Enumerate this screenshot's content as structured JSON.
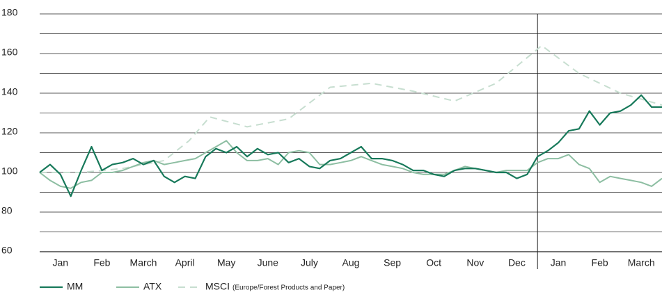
{
  "chart_data": {
    "type": "line",
    "xlim": [
      0,
      15
    ],
    "ylim": [
      60,
      180
    ],
    "yticks": [
      60,
      80,
      100,
      120,
      140,
      160,
      180
    ],
    "minor_grid_yticks": [
      70,
      90,
      110,
      130,
      150,
      170
    ],
    "grid": true,
    "divider_x": 12,
    "xticks": [
      {
        "value": 0.5,
        "label": "Jan"
      },
      {
        "value": 1.5,
        "label": "Feb"
      },
      {
        "value": 2.5,
        "label": "March"
      },
      {
        "value": 3.5,
        "label": "April"
      },
      {
        "value": 4.5,
        "label": "May"
      },
      {
        "value": 5.5,
        "label": "June"
      },
      {
        "value": 6.5,
        "label": "July"
      },
      {
        "value": 7.5,
        "label": "Aug"
      },
      {
        "value": 8.5,
        "label": "Sep"
      },
      {
        "value": 9.5,
        "label": "Oct"
      },
      {
        "value": 10.5,
        "label": "Nov"
      },
      {
        "value": 11.5,
        "label": "Dec"
      },
      {
        "value": 12.5,
        "label": "Jan"
      },
      {
        "value": 13.5,
        "label": "Feb"
      },
      {
        "value": 14.5,
        "label": "March"
      }
    ],
    "x": [
      0,
      0.25,
      0.5,
      0.75,
      1,
      1.25,
      1.5,
      1.75,
      2,
      2.25,
      2.5,
      2.75,
      3,
      3.25,
      3.5,
      3.75,
      4,
      4.25,
      4.5,
      4.75,
      5,
      5.25,
      5.5,
      5.75,
      6,
      6.25,
      6.5,
      6.75,
      7,
      7.25,
      7.5,
      7.75,
      8,
      8.25,
      8.5,
      8.75,
      9,
      9.25,
      9.5,
      9.75,
      10,
      10.25,
      10.5,
      10.75,
      11,
      11.25,
      11.5,
      11.75,
      12,
      12.25,
      12.5,
      12.75,
      13,
      13.25,
      13.5,
      13.75,
      14,
      14.25,
      14.5,
      14.75,
      15
    ],
    "legend_note": "(Europe/Forest Products and Paper)",
    "series": [
      {
        "name": "MM",
        "color": "#17795a",
        "width": 2.2,
        "values": [
          100,
          104,
          99,
          88,
          101,
          113,
          101,
          104,
          105,
          107,
          104,
          106,
          98,
          95,
          98,
          97,
          108,
          112,
          110,
          113,
          108,
          112,
          109,
          110,
          105,
          107,
          103,
          102,
          106,
          107,
          110,
          113,
          107,
          107,
          106,
          104,
          101,
          101,
          99,
          98,
          101,
          102,
          102,
          101,
          100,
          100,
          97,
          99,
          108,
          111,
          115,
          121,
          122,
          131,
          124,
          130,
          131,
          134,
          139,
          133,
          133
        ]
      },
      {
        "name": "ATX",
        "color": "#8dbea2",
        "width": 2,
        "values": [
          100,
          96,
          93,
          92,
          95,
          96,
          100,
          100,
          101,
          103,
          105,
          106,
          104,
          105,
          106,
          107,
          110,
          113,
          116,
          110,
          106,
          106,
          107,
          104,
          110,
          111,
          110,
          104,
          104,
          105,
          106,
          108,
          106,
          104,
          103,
          102,
          100,
          99,
          99,
          99,
          101,
          103,
          102,
          101,
          100,
          101,
          101,
          101,
          105,
          107,
          107,
          109,
          104,
          102,
          95,
          98,
          97,
          96,
          95,
          93,
          97
        ]
      },
      {
        "name": "MSCI",
        "color": "#c7ded0",
        "width": 2,
        "dashed": true,
        "x": [
          0,
          1,
          2,
          3,
          3.6,
          4.1,
          5,
          6,
          7,
          8,
          9,
          10,
          11,
          12.1,
          13,
          14,
          15
        ],
        "values": [
          100,
          100,
          102,
          106,
          116,
          128,
          123,
          127,
          143,
          145,
          141,
          136,
          145,
          164,
          150,
          140,
          134
        ]
      }
    ]
  }
}
